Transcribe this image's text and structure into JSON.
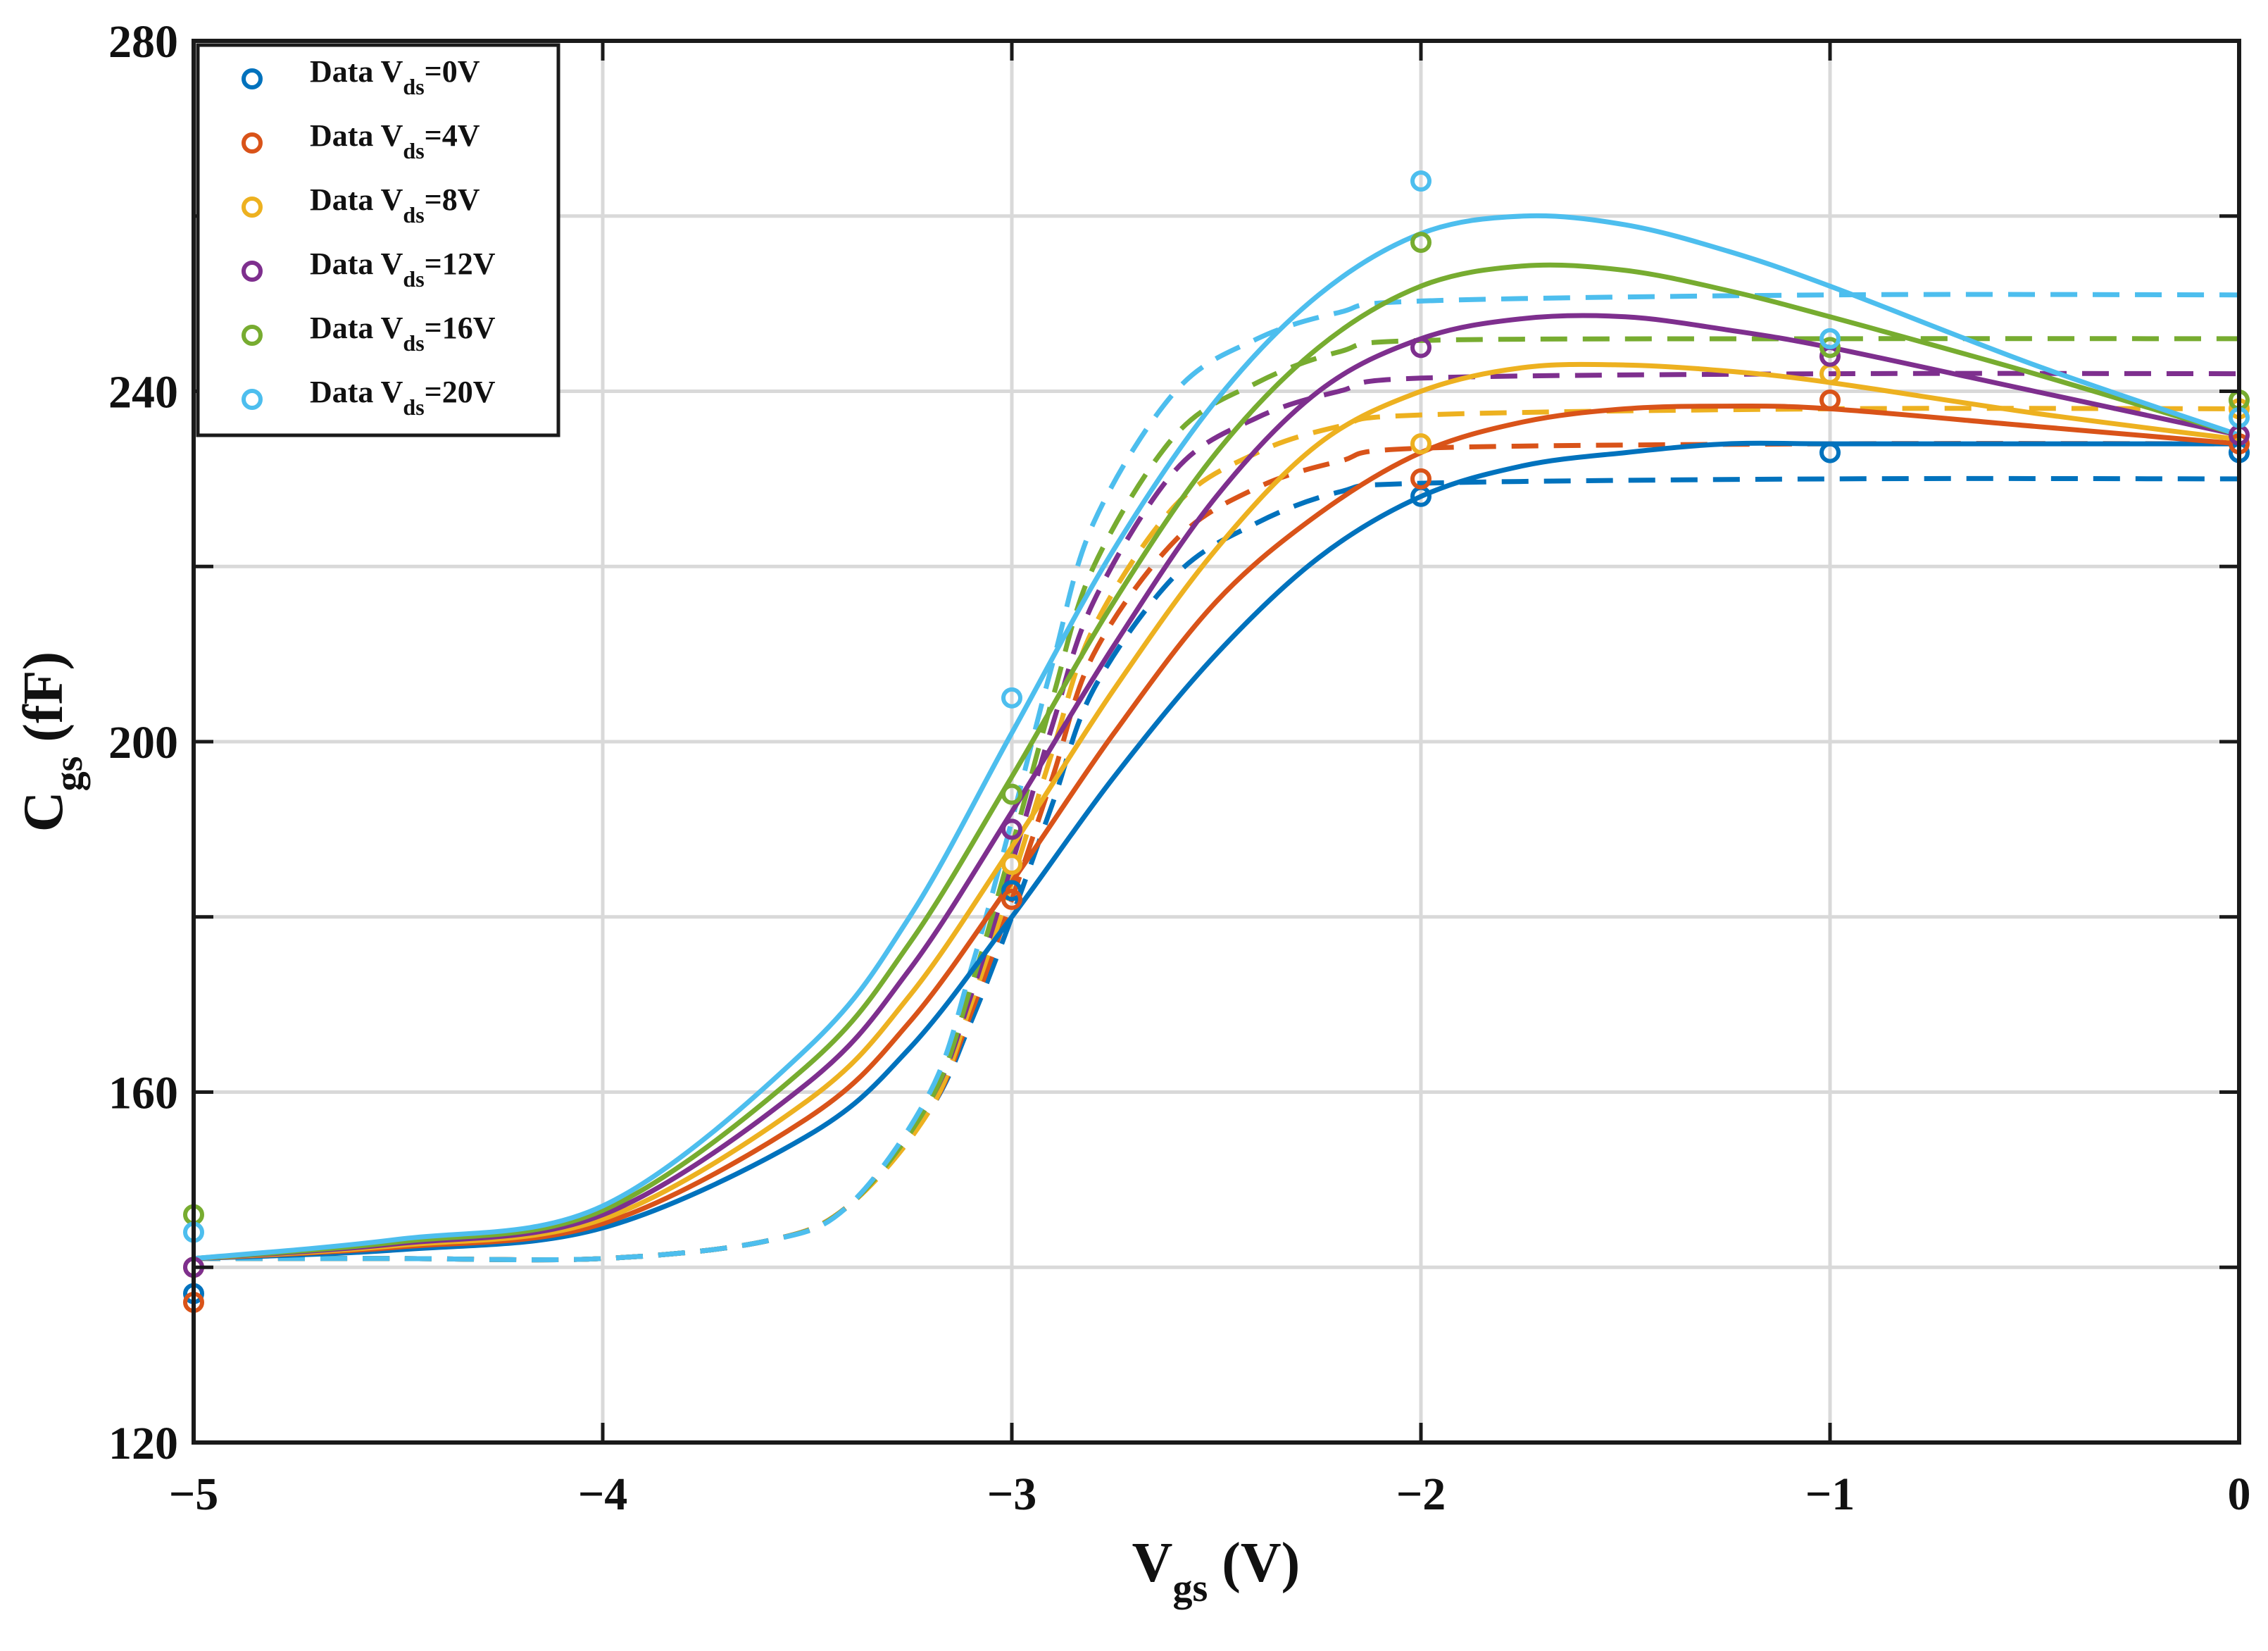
{
  "chart_data": {
    "type": "line",
    "xlabel": {
      "main": "V",
      "sub": "gs",
      "suffix": " (V)"
    },
    "ylabel": {
      "main": "C",
      "sub": "gs",
      "suffix": " (fF)"
    },
    "xlim": [
      -5,
      0
    ],
    "ylim": [
      120,
      280
    ],
    "xticks": [
      -5,
      -4,
      -3,
      -2,
      -1,
      0
    ],
    "xtick_labels": [
      "−5",
      "−4",
      "−3",
      "−2",
      "−1",
      "0"
    ],
    "yticks": [
      120,
      140,
      160,
      180,
      200,
      220,
      240,
      260,
      280
    ],
    "ytick_labels": [
      "120",
      "",
      "160",
      "",
      "200",
      "",
      "240",
      "",
      "280"
    ],
    "grid": true,
    "legend_position": "top-left",
    "series": [
      {
        "name": "Data V_ds=0V",
        "legend": {
          "prefix": "Data V",
          "sub": "ds",
          "suffix": "=0V"
        },
        "color": "#0072BD",
        "data_x": [
          -5,
          -3,
          -2,
          -1,
          0
        ],
        "data_y": [
          137,
          183,
          228,
          233,
          233
        ],
        "fit_solid": {
          "x": [
            -5,
            -4.5,
            -4,
            -3.5,
            -3.25,
            -3,
            -2.75,
            -2.5,
            -2.25,
            -2,
            -1.75,
            -1.5,
            -1.25,
            -1,
            -0.5,
            0
          ],
          "y": [
            141,
            142,
            144.5,
            155,
            165,
            180,
            196,
            210,
            221,
            228,
            231.5,
            233,
            234,
            234,
            234,
            234
          ]
        },
        "fit_dashed": {
          "x": [
            -5,
            -4.5,
            -4,
            -3.6,
            -3.4,
            -3.2,
            -3.1,
            -3,
            -2.9,
            -2.8,
            -2.6,
            -2.4,
            -2.2,
            -2,
            -1,
            0
          ],
          "y": [
            141,
            141,
            141,
            143,
            147,
            158,
            168,
            180,
            193,
            206,
            219,
            225,
            228.5,
            229.5,
            230,
            230
          ]
        }
      },
      {
        "name": "Data V_ds=4V",
        "legend": {
          "prefix": "Data V",
          "sub": "ds",
          "suffix": "=4V"
        },
        "color": "#D95319",
        "data_x": [
          -5,
          -3,
          -2,
          -1,
          0
        ],
        "data_y": [
          136,
          182,
          230,
          239,
          234
        ],
        "fit_solid": {
          "x": [
            -5,
            -4.5,
            -4,
            -3.5,
            -3.25,
            -3,
            -2.75,
            -2.5,
            -2.25,
            -2,
            -1.75,
            -1.5,
            -1.25,
            -1,
            -0.5,
            0
          ],
          "y": [
            141,
            142.3,
            145,
            157,
            168,
            184,
            201,
            216,
            226,
            233,
            236.5,
            238,
            238.3,
            238,
            236,
            234
          ]
        },
        "fit_dashed": {
          "x": [
            -5,
            -4.5,
            -4,
            -3.6,
            -3.4,
            -3.2,
            -3.1,
            -3,
            -2.9,
            -2.8,
            -2.6,
            -2.4,
            -2.2,
            -2,
            -1,
            0
          ],
          "y": [
            141,
            141,
            141,
            143,
            147,
            158,
            169,
            182,
            196,
            210,
            223,
            229,
            232,
            233.5,
            234,
            234
          ]
        }
      },
      {
        "name": "Data V_ds=8V",
        "legend": {
          "prefix": "Data V",
          "sub": "ds",
          "suffix": "=8V"
        },
        "color": "#EDB120",
        "data_x": [
          -5,
          -3,
          -2,
          -1,
          0
        ],
        "data_y": [
          140,
          186,
          234,
          242,
          238
        ],
        "fit_solid": {
          "x": [
            -5,
            -4.5,
            -4,
            -3.5,
            -3.25,
            -3,
            -2.75,
            -2.5,
            -2.25,
            -2,
            -1.75,
            -1.5,
            -1.25,
            -1,
            -0.5,
            0
          ],
          "y": [
            141,
            142.5,
            145.5,
            159,
            171,
            188,
            206,
            222,
            234,
            240,
            242.7,
            243,
            242.3,
            241,
            237.5,
            234.5
          ]
        },
        "fit_dashed": {
          "x": [
            -5,
            -4.5,
            -4,
            -3.6,
            -3.4,
            -3.2,
            -3.1,
            -3,
            -2.9,
            -2.8,
            -2.6,
            -2.4,
            -2.2,
            -2,
            -1,
            0
          ],
          "y": [
            141,
            141,
            141,
            143,
            147,
            158,
            170,
            184,
            199,
            213,
            227,
            233,
            236,
            237.3,
            238,
            238
          ]
        }
      },
      {
        "name": "Data V_ds=12V",
        "legend": {
          "prefix": "Data V",
          "sub": "ds",
          "suffix": "=12V"
        },
        "color": "#7E2F8E",
        "data_x": [
          -5,
          -3,
          -2,
          -1,
          0
        ],
        "data_y": [
          140,
          190,
          245,
          244,
          235
        ],
        "fit_solid": {
          "x": [
            -5,
            -4.5,
            -4,
            -3.5,
            -3.25,
            -3,
            -2.75,
            -2.5,
            -2.25,
            -2,
            -1.75,
            -1.5,
            -1.25,
            -1,
            -0.5,
            0
          ],
          "y": [
            141,
            142.7,
            146,
            161,
            174,
            192,
            211,
            228,
            240,
            246,
            248.3,
            248.5,
            247,
            245,
            240,
            235
          ]
        },
        "fit_dashed": {
          "x": [
            -5,
            -4.5,
            -4,
            -3.6,
            -3.4,
            -3.2,
            -3.1,
            -3,
            -2.9,
            -2.8,
            -2.6,
            -2.4,
            -2.2,
            -2,
            -1,
            0
          ],
          "y": [
            141,
            141,
            141,
            143,
            147,
            159,
            171,
            186,
            202,
            216,
            231,
            237,
            240,
            241.5,
            242,
            242
          ]
        }
      },
      {
        "name": "Data V_ds=16V",
        "legend": {
          "prefix": "Data V",
          "sub": "ds",
          "suffix": "=16V"
        },
        "color": "#77AC30",
        "data_x": [
          -5,
          -3,
          -2,
          -1,
          0
        ],
        "data_y": [
          146,
          194,
          257,
          245,
          239
        ],
        "fit_solid": {
          "x": [
            -5,
            -4.5,
            -4,
            -3.5,
            -3.25,
            -3,
            -2.75,
            -2.5,
            -2.25,
            -2,
            -1.75,
            -1.5,
            -1.25,
            -1,
            -0.5,
            0
          ],
          "y": [
            141,
            142.9,
            146.5,
            163,
            177,
            196,
            216,
            233,
            245,
            252,
            254.3,
            253.8,
            251.5,
            248.5,
            242,
            235
          ]
        },
        "fit_dashed": {
          "x": [
            -5,
            -4.5,
            -4,
            -3.6,
            -3.4,
            -3.2,
            -3.1,
            -3,
            -2.9,
            -2.8,
            -2.6,
            -2.4,
            -2.2,
            -2,
            -1,
            0
          ],
          "y": [
            141,
            141,
            141,
            143,
            147,
            159,
            172,
            188,
            205,
            220,
            235,
            241,
            244.5,
            245.8,
            246,
            246
          ]
        }
      },
      {
        "name": "Data V_ds=20V",
        "legend": {
          "prefix": "Data V",
          "sub": "ds",
          "suffix": "=20V"
        },
        "color": "#4DBEEE",
        "data_x": [
          -5,
          -3,
          -2,
          -1,
          0
        ],
        "data_y": [
          144,
          205,
          264,
          246,
          237
        ],
        "fit_solid": {
          "x": [
            -5,
            -4.5,
            -4,
            -3.5,
            -3.25,
            -3,
            -2.75,
            -2.5,
            -2.25,
            -2,
            -1.75,
            -1.5,
            -1.25,
            -1,
            -0.5,
            0
          ],
          "y": [
            141,
            143.2,
            147,
            165,
            180,
            201,
            222,
            239,
            251,
            258,
            260,
            259,
            256,
            252,
            243,
            235
          ]
        },
        "fit_dashed": {
          "x": [
            -5,
            -4.5,
            -4,
            -3.6,
            -3.4,
            -3.2,
            -3.1,
            -3,
            -2.9,
            -2.8,
            -2.6,
            -2.4,
            -2.2,
            -2,
            -1,
            0
          ],
          "y": [
            141,
            141,
            141,
            143,
            147,
            160,
            174,
            191,
            209,
            225,
            240,
            246,
            249,
            250.3,
            251,
            251
          ]
        }
      }
    ]
  }
}
